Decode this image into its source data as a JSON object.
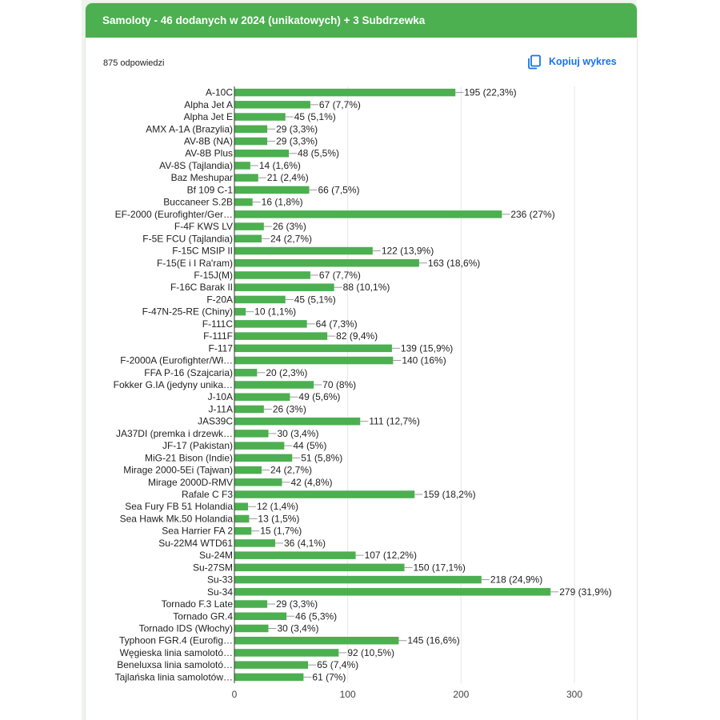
{
  "form": {
    "question_title": "Samoloty - 46 dodanych w 2024 (unikatowych) + 3 Subdrzewka",
    "responses_count": "875 odpowiedzi",
    "copy_chart_label": "Kopiuj wykres"
  },
  "colors": {
    "header": "#4caf50",
    "bar": "#4caf50",
    "accent": "#1a73e8"
  },
  "chart_data": {
    "type": "bar",
    "orientation": "horizontal",
    "xlim": [
      0,
      300
    ],
    "xticks": [
      0,
      100,
      200,
      300
    ],
    "grid": true,
    "categories": [
      "A-10C",
      "Alpha Jet A",
      "Alpha Jet E",
      "AMX A-1A (Brazylia)",
      "AV-8B (NA)",
      "AV-8B Plus",
      "AV-8S (Tajlandia)",
      "Baz Meshupar",
      "Bf 109 C-1",
      "Buccaneer S.2B",
      "EF-2000 (Eurofighter/Ger…",
      "F-4F KWS LV",
      "F-5E FCU (Tajlandia)",
      "F-15C MSIP II",
      "F-15(E i I Ra'ram)",
      "F-15J(M)",
      "F-16C Barak II",
      "F-20A",
      "F-47N-25-RE (Chiny)",
      "F-111C",
      "F-111F",
      "F-117",
      "F-2000A (Eurofighter/Wł…",
      "FFA P-16 (Szajcaria)",
      "Fokker G.IA (jedyny unika…",
      "J-10A",
      "J-11A",
      "JAS39C",
      "JA37DI (premka i drzewk…",
      "JF-17 (Pakistan)",
      "MiG-21 Bison (Indie)",
      "Mirage 2000-5Ei (Tajwan)",
      "Mirage 2000D-RMV",
      "Rafale C F3",
      "Sea Fury FB 51 Holandia",
      "Sea Hawk Mk.50 Holandia",
      "Sea Harrier FA 2",
      "Su-22M4 WTD61",
      "Su-24M",
      "Su-27SM",
      "Su-33",
      "Su-34",
      "Tornado F.3 Late",
      "Tornado GR.4",
      "Tornado IDS (Włochy)",
      "Typhoon FGR.4 (Eurofig…",
      "Węgieska linia samolotó…",
      "Beneluxsa linia samolotó…",
      "Tajlańska linia samolotów…"
    ],
    "values": [
      195,
      67,
      45,
      29,
      29,
      48,
      14,
      21,
      66,
      16,
      236,
      26,
      24,
      122,
      163,
      67,
      88,
      45,
      10,
      64,
      82,
      139,
      140,
      20,
      70,
      49,
      26,
      111,
      30,
      44,
      51,
      24,
      42,
      159,
      12,
      13,
      15,
      36,
      107,
      150,
      218,
      279,
      29,
      46,
      30,
      145,
      92,
      65,
      61
    ],
    "value_labels": [
      "195 (22,3%)",
      "67 (7,7%)",
      "45 (5,1%)",
      "29 (3,3%)",
      "29 (3,3%)",
      "48 (5,5%)",
      "14 (1,6%)",
      "21 (2,4%)",
      "66 (7,5%)",
      "16 (1,8%)",
      "236 (27%)",
      "26 (3%)",
      "24 (2,7%)",
      "122 (13,9%)",
      "163 (18,6%)",
      "67 (7,7%)",
      "88 (10,1%)",
      "45 (5,1%)",
      "10 (1,1%)",
      "64 (7,3%)",
      "82 (9,4%)",
      "139 (15,9%)",
      "140 (16%)",
      "20 (2,3%)",
      "70 (8%)",
      "49 (5,6%)",
      "26 (3%)",
      "111 (12,7%)",
      "30 (3,4%)",
      "44 (5%)",
      "51 (5,8%)",
      "24 (2,7%)",
      "42 (4,8%)",
      "159 (18,2%)",
      "12 (1,4%)",
      "13 (1,5%)",
      "15 (1,7%)",
      "36 (4,1%)",
      "107 (12,2%)",
      "150 (17,1%)",
      "218 (24,9%)",
      "279 (31,9%)",
      "29 (3,3%)",
      "46 (5,3%)",
      "30 (3,4%)",
      "145 (16,6%)",
      "92 (10,5%)",
      "65 (7,4%)",
      "61 (7%)"
    ]
  }
}
